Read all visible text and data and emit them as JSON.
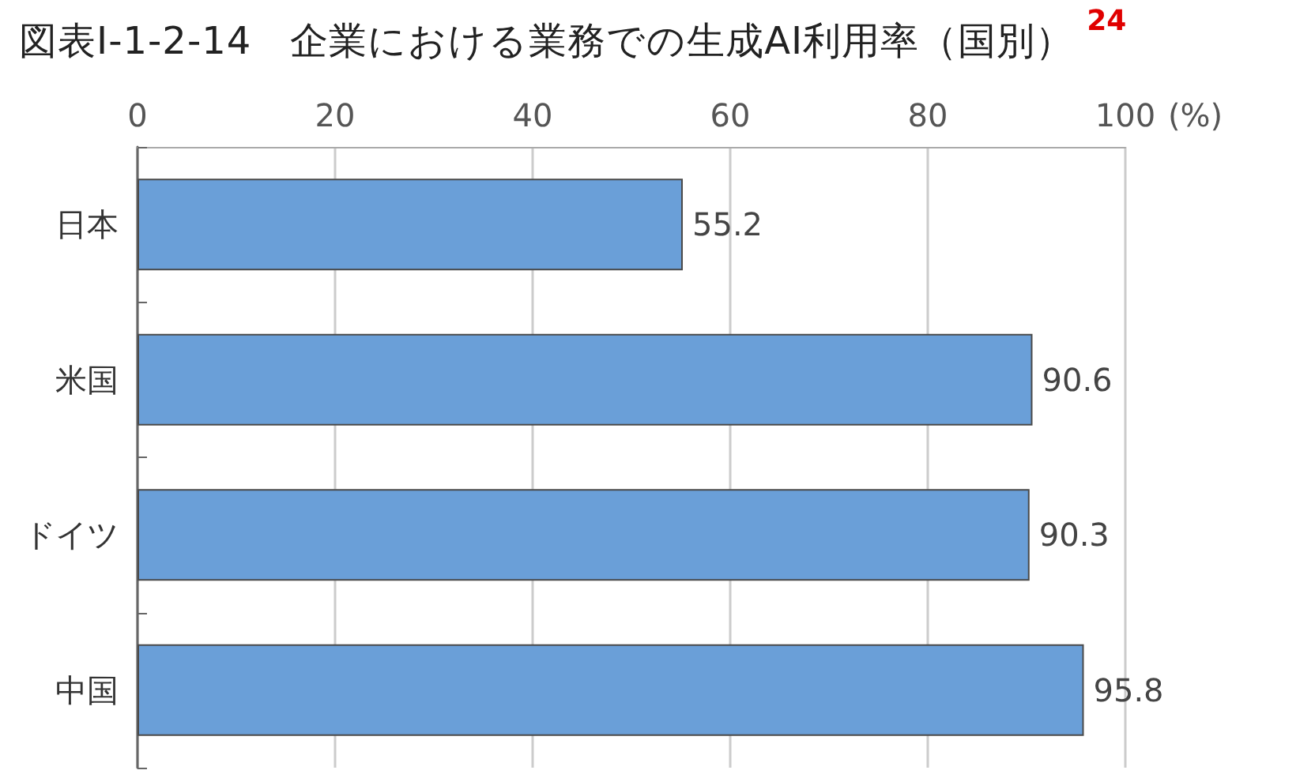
{
  "chart_data": {
    "type": "bar",
    "orientation": "horizontal",
    "title": "図表Ⅰ-1-2-14　企業における業務での生成AI利用率（国別）",
    "annotations": [
      "24"
    ],
    "xlabel": "(%)",
    "categories": [
      "日本",
      "米国",
      "ドイツ",
      "中国"
    ],
    "values": [
      55.2,
      90.6,
      90.3,
      95.8
    ],
    "color": "#6a9fd8",
    "xlim": [
      0,
      100
    ],
    "xticks": [
      0,
      20,
      40,
      60,
      80,
      100
    ],
    "grid": "x",
    "data_labels": true
  }
}
